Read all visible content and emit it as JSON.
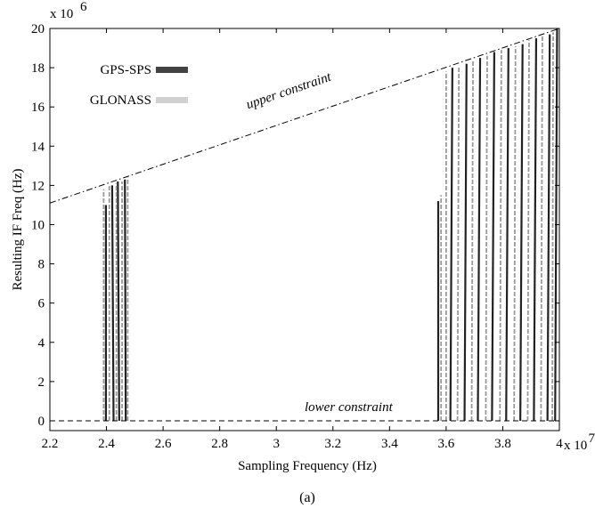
{
  "chart_data": {
    "type": "line",
    "xlabel": "Sampling Frequency (Hz)",
    "ylabel": "Resulting IF Freq (Hz)",
    "x_multiplier": "x 10",
    "x_exponent": "7",
    "y_multiplier": "x 10",
    "y_exponent": "6",
    "caption": "(a)",
    "xlim": [
      22000000.0,
      40000000.0
    ],
    "ylim": [
      -500000.0,
      20000000.0
    ],
    "x_ticks": [
      22000000.0,
      24000000.0,
      26000000.0,
      28000000.0,
      30000000.0,
      32000000.0,
      34000000.0,
      36000000.0,
      38000000.0,
      40000000.0
    ],
    "x_tick_labels": [
      "2.2",
      "2.4",
      "2.6",
      "2.8",
      "3",
      "3.2",
      "3.4",
      "3.6",
      "3.8",
      "4"
    ],
    "y_ticks": [
      0,
      2000000.0,
      4000000.0,
      6000000.0,
      8000000.0,
      10000000.0,
      12000000.0,
      14000000.0,
      16000000.0,
      18000000.0,
      20000000.0
    ],
    "y_tick_labels": [
      "0",
      "2",
      "4",
      "6",
      "8",
      "10",
      "12",
      "14",
      "16",
      "18",
      "20"
    ],
    "grid": false,
    "legend_position": "top-left",
    "constraints": [
      {
        "label": "upper constraint",
        "x": [
          22000000.0,
          40000000.0
        ],
        "y": [
          11100000.0,
          20000000.0
        ],
        "style": "dash-dot",
        "label_at": [
          29000000.0,
          15900000.0
        ]
      },
      {
        "label": "lower constraint",
        "x": [
          22000000.0,
          40000000.0
        ],
        "y": [
          0,
          0
        ],
        "style": "dashed",
        "label_at": [
          31000000.0,
          500000.0
        ]
      }
    ],
    "series": [
      {
        "name": "GPS-SPS",
        "color": "#222222",
        "segments": [
          {
            "x": [
              23980000.0,
              23980000.0
            ],
            "y": [
              0,
              11000000.0
            ]
          },
          {
            "x": [
              24250000.0,
              24200000.0
            ],
            "y": [
              0,
              12000000.0
            ]
          },
          {
            "x": [
              24450000.0,
              24400000.0
            ],
            "y": [
              0,
              12200000.0
            ]
          },
          {
            "x": [
              24680000.0,
              24650000.0
            ],
            "y": [
              0,
              12300000.0
            ]
          },
          {
            "x": [
              35720000.0,
              35720000.0
            ],
            "y": [
              0,
              11200000.0
            ]
          },
          {
            "x": [
              36150000.0,
              36220000.0
            ],
            "y": [
              0,
              18000000.0
            ]
          },
          {
            "x": [
              36650000.0,
              36720000.0
            ],
            "y": [
              0,
              18200000.0
            ]
          },
          {
            "x": [
              37120000.0,
              37200000.0
            ],
            "y": [
              0,
              18500000.0
            ]
          },
          {
            "x": [
              37620000.0,
              37700000.0
            ],
            "y": [
              0,
              18800000.0
            ]
          },
          {
            "x": [
              38120000.0,
              38200000.0
            ],
            "y": [
              0,
              19000000.0
            ]
          },
          {
            "x": [
              38620000.0,
              38700000.0
            ],
            "y": [
              0,
              19200000.0
            ]
          },
          {
            "x": [
              39100000.0,
              39180000.0
            ],
            "y": [
              0,
              19500000.0
            ]
          },
          {
            "x": [
              39580000.0,
              39660000.0
            ],
            "y": [
              0,
              19700000.0
            ]
          },
          {
            "x": [
              39850000.0,
              39920000.0
            ],
            "y": [
              0,
              20000000.0
            ]
          }
        ]
      },
      {
        "name": "GLONASS",
        "color": "#9a9a9a",
        "segments": [
          {
            "x": [
              23900000.0,
              23900000.0
            ],
            "y": [
              0,
              11800000.0
            ]
          },
          {
            "x": [
              24100000.0,
              24100000.0
            ],
            "y": [
              0,
              12000000.0
            ]
          },
          {
            "x": [
              24350000.0,
              24350000.0
            ],
            "y": [
              0,
              12100000.0
            ]
          },
          {
            "x": [
              24550000.0,
              24550000.0
            ],
            "y": [
              0,
              12200000.0
            ]
          },
          {
            "x": [
              24750000.0,
              24750000.0
            ],
            "y": [
              0,
              12400000.0
            ]
          },
          {
            "x": [
              35820000.0,
              35820000.0
            ],
            "y": [
              0,
              11500000.0
            ]
          },
          {
            "x": [
              36000000.0,
              36000000.0
            ],
            "y": [
              0,
              17800000.0
            ]
          },
          {
            "x": [
              36400000.0,
              36450000.0
            ],
            "y": [
              0,
              18100000.0
            ]
          },
          {
            "x": [
              36900000.0,
              36950000.0
            ],
            "y": [
              0,
              18400000.0
            ]
          },
          {
            "x": [
              37400000.0,
              37450000.0
            ],
            "y": [
              0,
              18600000.0
            ]
          },
          {
            "x": [
              37900000.0,
              37950000.0
            ],
            "y": [
              0,
              18900000.0
            ]
          },
          {
            "x": [
              38400000.0,
              38450000.0
            ],
            "y": [
              0,
              19100000.0
            ]
          },
          {
            "x": [
              38880000.0,
              38930000.0
            ],
            "y": [
              0,
              19400000.0
            ]
          },
          {
            "x": [
              39350000.0,
              39400000.0
            ],
            "y": [
              0,
              19600000.0
            ]
          },
          {
            "x": [
              39750000.0,
              39780000.0
            ],
            "y": [
              0,
              19800000.0
            ]
          }
        ]
      }
    ]
  }
}
